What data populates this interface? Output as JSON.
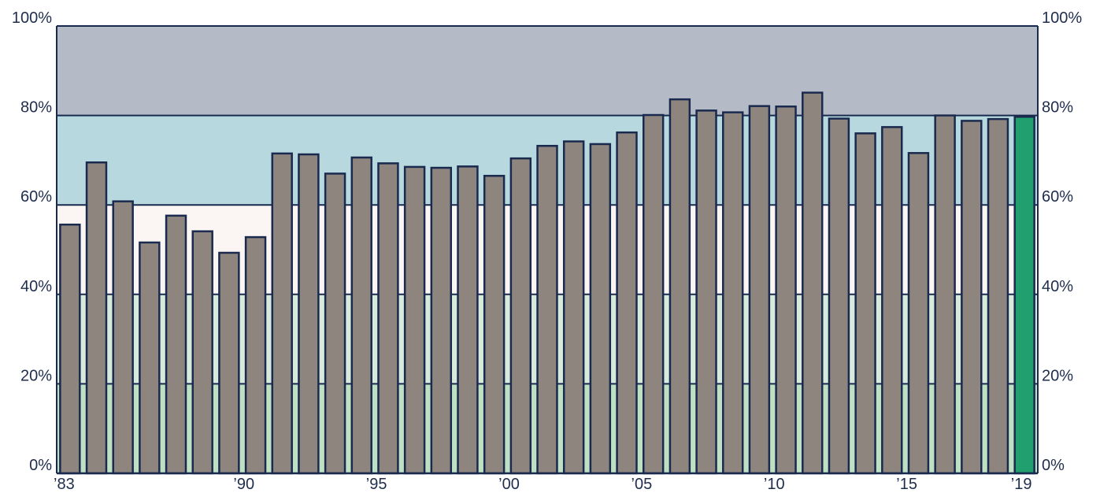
{
  "chart_data": {
    "type": "bar",
    "title": "",
    "xlabel": "",
    "ylabel": "",
    "ylim": [
      0,
      100
    ],
    "categories": [
      "1983",
      "1984",
      "1985",
      "1986",
      "1987",
      "1988",
      "1989",
      "1990",
      "1991",
      "1992",
      "1993",
      "1994",
      "1995",
      "1996",
      "1997",
      "1998",
      "1999",
      "2000",
      "2001",
      "2002",
      "2003",
      "2004",
      "2005",
      "2006",
      "2007",
      "2008",
      "2009",
      "2010",
      "2011",
      "2012",
      "2013",
      "2014",
      "2015",
      "2016",
      "2017",
      "2018",
      "2019"
    ],
    "values": [
      55.6,
      69.5,
      60.8,
      51.6,
      57.6,
      54.1,
      49.3,
      52.8,
      71.5,
      71.3,
      67.0,
      70.6,
      69.3,
      68.5,
      68.3,
      68.6,
      66.5,
      70.4,
      73.2,
      74.2,
      73.6,
      76.2,
      80.1,
      83.6,
      81.1,
      80.7,
      82.1,
      82.0,
      85.1,
      79.3,
      76.0,
      77.4,
      71.6,
      80.0,
      78.8,
      79.2,
      79.7
    ],
    "highlight_index": 36,
    "x_tick_labels": [
      {
        "index": 0,
        "label": "’83"
      },
      {
        "index": 7,
        "label": "’90"
      },
      {
        "index": 12,
        "label": "’95"
      },
      {
        "index": 17,
        "label": "’00"
      },
      {
        "index": 22,
        "label": "’05"
      },
      {
        "index": 27,
        "label": "’10"
      },
      {
        "index": 32,
        "label": "’15"
      },
      {
        "index": 36,
        "label": "’19"
      }
    ],
    "y_ticks": [
      {
        "value": 0,
        "label": "0%"
      },
      {
        "value": 20,
        "label": "20%"
      },
      {
        "value": 40,
        "label": "40%"
      },
      {
        "value": 60,
        "label": "60%"
      },
      {
        "value": 80,
        "label": "80%"
      },
      {
        "value": 100,
        "label": "100%"
      }
    ],
    "grid": true,
    "background_bands": [
      {
        "from": 0,
        "to": 20,
        "color": "#bfe0c3"
      },
      {
        "from": 20,
        "to": 40,
        "color": "#d7eadb"
      },
      {
        "from": 40,
        "to": 60,
        "color": "#fbf6f3"
      },
      {
        "from": 60,
        "to": 80,
        "color": "#b7d8de"
      },
      {
        "from": 80,
        "to": 100,
        "color": "#b5bbc6"
      }
    ],
    "colors": {
      "bar": "#8e857f",
      "bar_highlight": "#229f6e",
      "bar_stroke": "#1a2a4f",
      "grid": "#1a2a4f",
      "text": "#1f2d4d"
    }
  }
}
